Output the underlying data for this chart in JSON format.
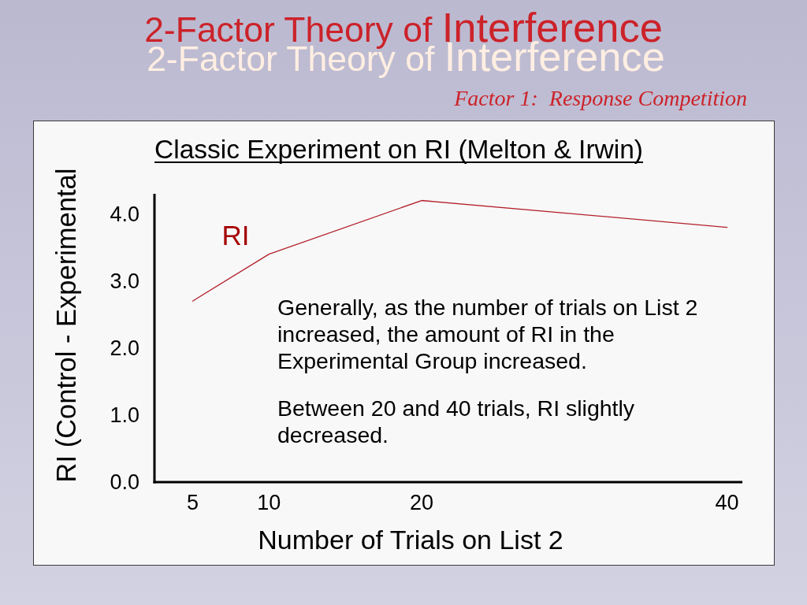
{
  "chart_data": {
    "type": "line",
    "title": "2-Factor Theory of Interference",
    "subtitle": "Factor 1:  Response Competition",
    "annotations": [
      "Classic Experiment on RI (Melton & Irwin)",
      "Generally, as the number of trials on List 2 increased, the amount of RI in the Experimental Group increased.",
      "Between 20 and 40 trials, RI slightly decreased."
    ],
    "xlabel": "Number of Trials on List 2",
    "ylabel": "RI (Control - Experimental",
    "x": [
      5,
      10,
      20,
      40
    ],
    "series": [
      {
        "name": "RI",
        "color": "#b3202a",
        "values": [
          2.7,
          3.4,
          4.2,
          3.8
        ]
      }
    ],
    "xlim": [
      2.5,
      41
    ],
    "xticks": [
      5,
      10,
      20,
      40
    ],
    "ylim": [
      0,
      4.3
    ],
    "yticks": [
      {
        "value": 0,
        "label": "0.0"
      },
      {
        "value": 1,
        "label": "1.0"
      },
      {
        "value": 2,
        "label": "2.0"
      },
      {
        "value": 3,
        "label": "3.0"
      },
      {
        "value": 4,
        "label": "4.0"
      }
    ]
  }
}
